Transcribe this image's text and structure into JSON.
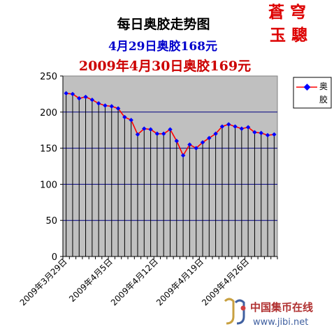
{
  "chart_data": {
    "type": "line",
    "title": "每日奥胶走势图",
    "subtitle_1": "4月29日奥胶168元",
    "subtitle_2": "2009年4月30日奥胶169元",
    "stamp": "蒼穹 玉驄",
    "legend_title": "奥胶",
    "xlabel": "",
    "ylabel": "",
    "ylim": [
      0,
      250
    ],
    "yticks": [
      0,
      50,
      100,
      150,
      200,
      250
    ],
    "grid": "horizontal",
    "legend_position": "right",
    "x": [
      "2009年3月29日",
      "2009年3月30日",
      "2009年3月31日",
      "2009年4月1日",
      "2009年4月2日",
      "2009年4月3日",
      "2009年4月4日",
      "2009年4月5日",
      "2009年4月6日",
      "2009年4月7日",
      "2009年4月8日",
      "2009年4月9日",
      "2009年4月10日",
      "2009年4月11日",
      "2009年4月12日",
      "2009年4月13日",
      "2009年4月14日",
      "2009年4月15日",
      "2009年4月16日",
      "2009年4月17日",
      "2009年4月18日",
      "2009年4月19日",
      "2009年4月20日",
      "2009年4月21日",
      "2009年4月22日",
      "2009年4月23日",
      "2009年4月24日",
      "2009年4月25日",
      "2009年4月26日",
      "2009年4月27日",
      "2009年4月28日",
      "2009年4月29日",
      "2009年4月30日"
    ],
    "x_tick_labels": [
      "2009年3月29日",
      "2009年4月5日",
      "2009年4月12日",
      "2009年4月19日",
      "2009年4月26日"
    ],
    "x_tick_index": [
      0,
      7,
      14,
      21,
      28
    ],
    "series": [
      {
        "name": "奥胶",
        "values": [
          226,
          225,
          219,
          221,
          217,
          212,
          209,
          208,
          205,
          193,
          189,
          169,
          177,
          176,
          170,
          170,
          176,
          160,
          140,
          155,
          150,
          158,
          164,
          170,
          180,
          183,
          180,
          177,
          179,
          172,
          171,
          168,
          169
        ]
      }
    ],
    "colors": {
      "plot_bg": "#c0c0c0",
      "line": "#ff0000",
      "marker": "#0000ff",
      "grid": "#000080",
      "title": "#000000",
      "subtitle_1": "#0000cc",
      "subtitle_2": "#cc0000",
      "stamp": "#dd0000"
    }
  },
  "watermark": {
    "brand": "中国集币在线",
    "url": "www.jibi.net"
  }
}
